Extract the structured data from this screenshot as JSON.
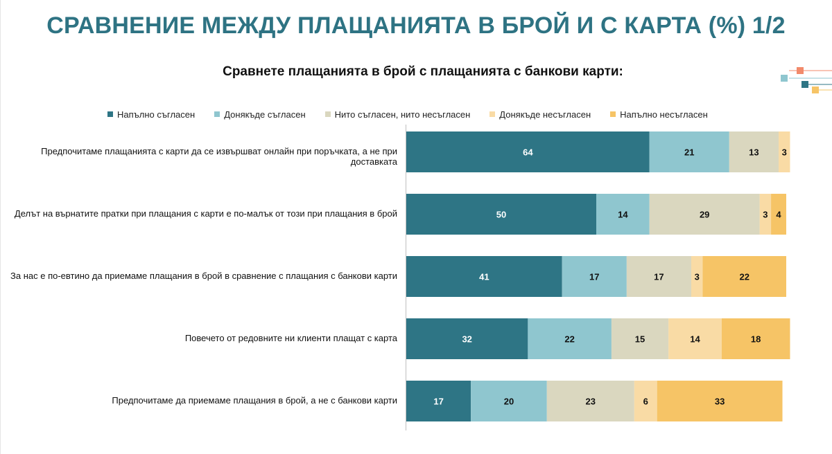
{
  "title": "СРАВНЕНИЕ МЕЖДУ ПЛАЩАНИЯТА В БРОЙ И С КАРТА (%) 1/2",
  "subtitle": "Сравнете плащанията в брой с плащанията с банкови карти:",
  "chart_data": {
    "type": "bar",
    "orientation": "horizontal",
    "stacked": true,
    "xlim": [
      0,
      100
    ],
    "grid": false,
    "legend_position": "top",
    "categories": [
      "Предпочитаме плащанията с карти да се извършват онлайн при поръчката, а не при доставката",
      "Делът на върнатите пратки при плащания с карти е по-малък от този при плащания в брой",
      "За нас е по-евтино да приемаме плащания в брой в сравнение с плащания с банкови карти",
      "Повечето от редовните ни клиенти плащат с карта",
      "Предпочитаме да приемаме плащания в брой, а не с банкови карти"
    ],
    "series": [
      {
        "name": "Напълно съгласен",
        "color": "#2e7585",
        "label_color": "#ffffff",
        "values": [
          64,
          50,
          41,
          32,
          17
        ]
      },
      {
        "name": "Донякъде съгласен",
        "color": "#8fc6cf",
        "label_color": "#111111",
        "values": [
          21,
          14,
          17,
          22,
          20
        ]
      },
      {
        "name": "Нито съгласен, нито несъгласен",
        "color": "#dad7bf",
        "label_color": "#111111",
        "values": [
          13,
          29,
          17,
          15,
          23
        ]
      },
      {
        "name": "Донякъде несъгласен",
        "color": "#f9dba5",
        "label_color": "#111111",
        "values": [
          3,
          3,
          3,
          14,
          6
        ]
      },
      {
        "name": "Напълно несъгласен",
        "color": "#f6c466",
        "label_color": "#111111",
        "values": [
          0,
          4,
          22,
          18,
          33
        ]
      }
    ]
  }
}
